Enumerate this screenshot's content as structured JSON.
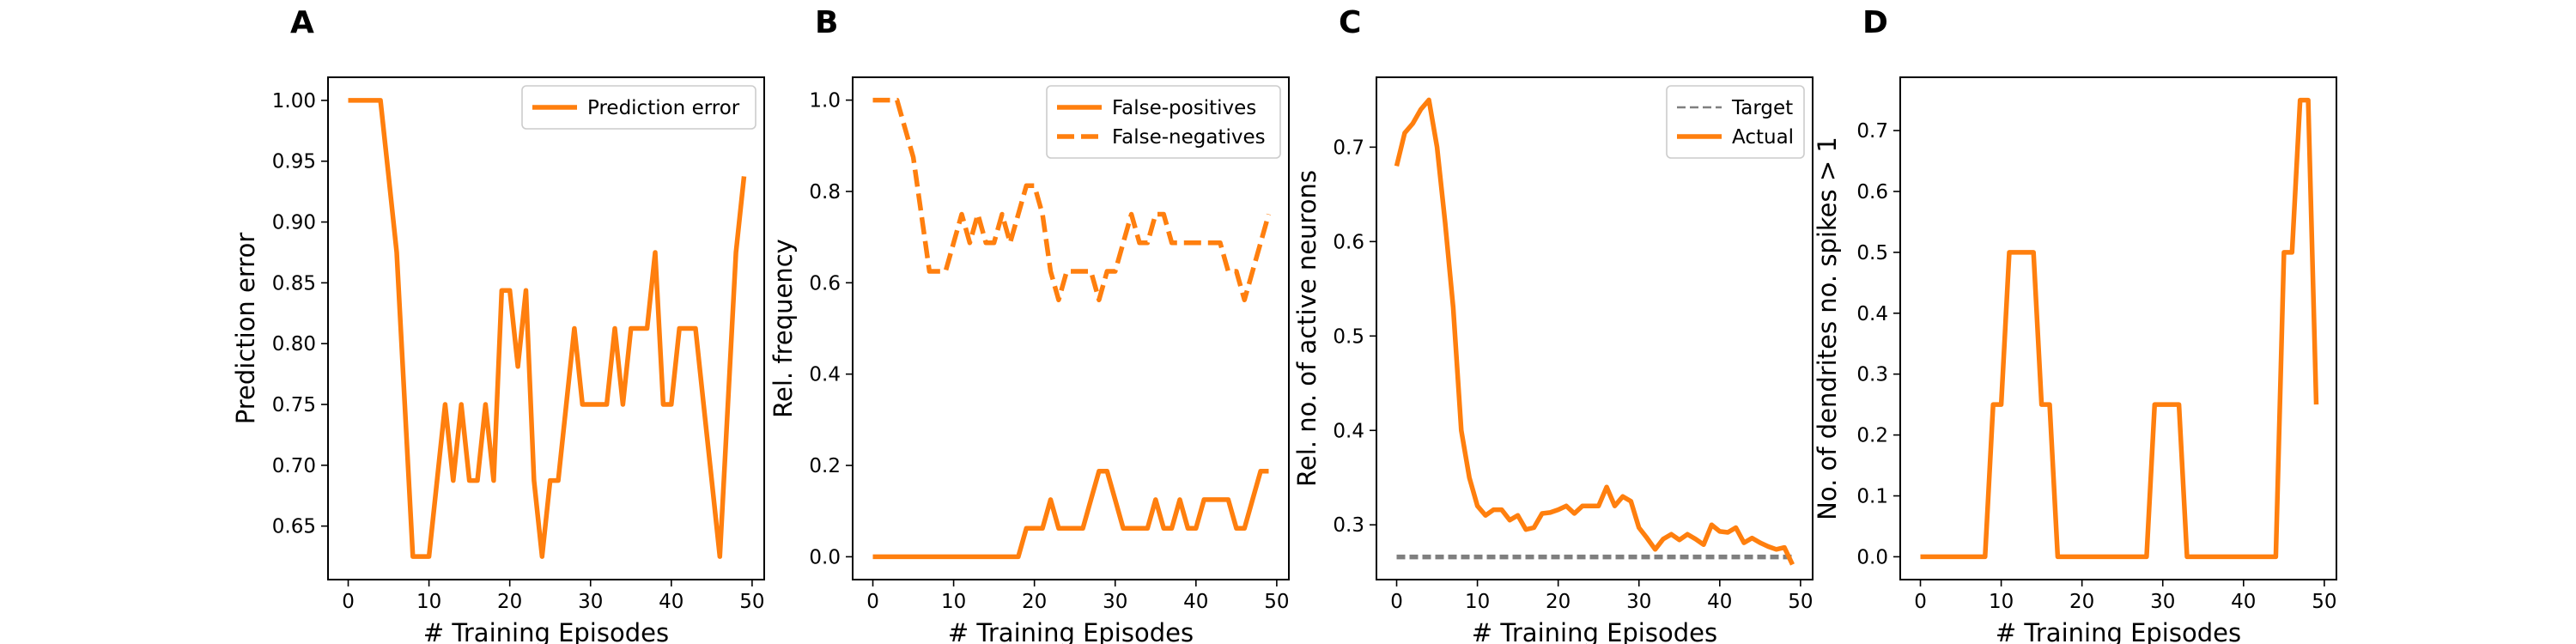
{
  "colors": {
    "orange": "#ff7f0e",
    "target": "#7f7f7f"
  },
  "chart_data": [
    {
      "panel": "A",
      "type": "line",
      "xlabel": "# Training Episodes",
      "ylabel": "Prediction error",
      "xlim": [
        -2.5,
        51.5
      ],
      "ylim": [
        0.606,
        1.019
      ],
      "xticks": [
        0,
        10,
        20,
        30,
        40,
        50
      ],
      "yticks": [
        0.65,
        0.7,
        0.75,
        0.8,
        0.85,
        0.9,
        0.95,
        1.0
      ],
      "ytick_labels": [
        "0.65",
        "0.70",
        "0.75",
        "0.80",
        "0.85",
        "0.90",
        "0.95",
        "1.00"
      ],
      "legend": "upper right",
      "series": [
        {
          "name": "Prediction error",
          "style": "solid",
          "x": [
            0,
            1,
            2,
            3,
            4,
            5,
            6,
            7,
            8,
            9,
            10,
            11,
            12,
            13,
            14,
            15,
            16,
            17,
            18,
            19,
            20,
            21,
            22,
            23,
            24,
            25,
            26,
            27,
            28,
            29,
            30,
            31,
            32,
            33,
            34,
            35,
            36,
            37,
            38,
            39,
            40,
            41,
            42,
            43,
            44,
            45,
            46,
            47,
            48,
            49
          ],
          "y": [
            1.0,
            1.0,
            1.0,
            1.0,
            1.0,
            0.9375,
            0.875,
            0.75,
            0.625,
            0.625,
            0.625,
            0.6875,
            0.75,
            0.6875,
            0.75,
            0.6875,
            0.6875,
            0.75,
            0.6875,
            0.84375,
            0.84375,
            0.78125,
            0.84375,
            0.6875,
            0.625,
            0.6875,
            0.6875,
            0.75,
            0.8125,
            0.75,
            0.75,
            0.75,
            0.75,
            0.8125,
            0.75,
            0.8125,
            0.8125,
            0.8125,
            0.875,
            0.75,
            0.75,
            0.8125,
            0.8125,
            0.8125,
            0.75,
            0.6875,
            0.625,
            0.75,
            0.875,
            0.9375
          ]
        }
      ]
    },
    {
      "panel": "B",
      "type": "line",
      "xlabel": "# Training Episodes",
      "ylabel": "Rel. frequency",
      "xlim": [
        -2.5,
        51.5
      ],
      "ylim": [
        -0.05,
        1.05
      ],
      "xticks": [
        0,
        10,
        20,
        30,
        40,
        50
      ],
      "yticks": [
        0.0,
        0.2,
        0.4,
        0.6,
        0.8,
        1.0
      ],
      "ytick_labels": [
        "0.0",
        "0.2",
        "0.4",
        "0.6",
        "0.8",
        "1.0"
      ],
      "legend": "upper right",
      "series": [
        {
          "name": "False-positives",
          "style": "solid",
          "x": [
            0,
            1,
            2,
            3,
            4,
            5,
            6,
            7,
            8,
            9,
            10,
            11,
            12,
            13,
            14,
            15,
            16,
            17,
            18,
            19,
            20,
            21,
            22,
            23,
            24,
            25,
            26,
            27,
            28,
            29,
            30,
            31,
            32,
            33,
            34,
            35,
            36,
            37,
            38,
            39,
            40,
            41,
            42,
            43,
            44,
            45,
            46,
            47,
            48,
            49
          ],
          "y": [
            0,
            0,
            0,
            0,
            0,
            0,
            0,
            0,
            0,
            0,
            0,
            0,
            0,
            0,
            0,
            0,
            0,
            0,
            0,
            0.0625,
            0.0625,
            0.0625,
            0.125,
            0.0625,
            0.0625,
            0.0625,
            0.0625,
            0.125,
            0.1875,
            0.1875,
            0.125,
            0.0625,
            0.0625,
            0.0625,
            0.0625,
            0.125,
            0.0625,
            0.0625,
            0.125,
            0.0625,
            0.0625,
            0.125,
            0.125,
            0.125,
            0.125,
            0.0625,
            0.0625,
            0.125,
            0.1875,
            0.1875
          ]
        },
        {
          "name": "False-negatives",
          "style": "dashed",
          "x": [
            0,
            1,
            2,
            3,
            4,
            5,
            6,
            7,
            8,
            9,
            10,
            11,
            12,
            13,
            14,
            15,
            16,
            17,
            18,
            19,
            20,
            21,
            22,
            23,
            24,
            25,
            26,
            27,
            28,
            29,
            30,
            31,
            32,
            33,
            34,
            35,
            36,
            37,
            38,
            39,
            40,
            41,
            42,
            43,
            44,
            45,
            46,
            47,
            48,
            49
          ],
          "y": [
            1.0,
            1.0,
            1.0,
            1.0,
            0.9375,
            0.875,
            0.75,
            0.625,
            0.625,
            0.625,
            0.6875,
            0.75,
            0.6875,
            0.75,
            0.6875,
            0.6875,
            0.75,
            0.6875,
            0.75,
            0.8125,
            0.8125,
            0.75,
            0.625,
            0.5625,
            0.625,
            0.625,
            0.625,
            0.625,
            0.5625,
            0.625,
            0.625,
            0.6875,
            0.75,
            0.6875,
            0.6875,
            0.75,
            0.75,
            0.6875,
            0.6875,
            0.6875,
            0.6875,
            0.6875,
            0.6875,
            0.6875,
            0.625,
            0.625,
            0.5625,
            0.625,
            0.6875,
            0.75
          ]
        }
      ]
    },
    {
      "panel": "C",
      "type": "line",
      "xlabel": "# Training Episodes",
      "ylabel": "Rel. no. of active neurons",
      "xlim": [
        -2.5,
        51.5
      ],
      "ylim": [
        0.242,
        0.774
      ],
      "xticks": [
        0,
        10,
        20,
        30,
        40,
        50
      ],
      "yticks": [
        0.3,
        0.4,
        0.5,
        0.6,
        0.7
      ],
      "ytick_labels": [
        "0.3",
        "0.4",
        "0.5",
        "0.6",
        "0.7"
      ],
      "legend": "upper right",
      "series": [
        {
          "name": "Target",
          "style": "dashed-thin",
          "x": [
            0,
            49
          ],
          "y": [
            0.266,
            0.266
          ]
        },
        {
          "name": "Actual",
          "style": "solid",
          "x": [
            0,
            1,
            2,
            3,
            4,
            5,
            6,
            7,
            8,
            9,
            10,
            11,
            12,
            13,
            14,
            15,
            16,
            17,
            18,
            19,
            20,
            21,
            22,
            23,
            24,
            25,
            26,
            27,
            28,
            29,
            30,
            31,
            32,
            33,
            34,
            35,
            36,
            37,
            38,
            39,
            40,
            41,
            42,
            43,
            44,
            45,
            46,
            47,
            48,
            49
          ],
          "y": [
            0.68,
            0.715,
            0.725,
            0.74,
            0.75,
            0.7,
            0.62,
            0.53,
            0.4,
            0.35,
            0.32,
            0.31,
            0.316,
            0.316,
            0.305,
            0.31,
            0.295,
            0.297,
            0.312,
            0.313,
            0.316,
            0.32,
            0.312,
            0.32,
            0.32,
            0.32,
            0.34,
            0.32,
            0.33,
            0.325,
            0.297,
            0.286,
            0.274,
            0.285,
            0.29,
            0.284,
            0.29,
            0.285,
            0.279,
            0.3,
            0.293,
            0.292,
            0.297,
            0.281,
            0.286,
            0.281,
            0.277,
            0.274,
            0.276,
            0.258
          ]
        }
      ]
    },
    {
      "panel": "D",
      "type": "line",
      "xlabel": "# Training Episodes",
      "ylabel": "No. of dendrites no. spikes > 1",
      "xlim": [
        -2.5,
        51.5
      ],
      "ylim": [
        -0.0375,
        0.7875
      ],
      "xticks": [
        0,
        10,
        20,
        30,
        40,
        50
      ],
      "yticks": [
        0.0,
        0.1,
        0.2,
        0.3,
        0.4,
        0.5,
        0.6,
        0.7
      ],
      "ytick_labels": [
        "0.0",
        "0.1",
        "0.2",
        "0.3",
        "0.4",
        "0.5",
        "0.6",
        "0.7"
      ],
      "legend": "none",
      "series": [
        {
          "name": "",
          "style": "solid",
          "x": [
            0,
            1,
            2,
            3,
            4,
            5,
            6,
            7,
            8,
            9,
            10,
            11,
            12,
            13,
            14,
            15,
            16,
            17,
            18,
            19,
            20,
            21,
            22,
            23,
            24,
            25,
            26,
            27,
            28,
            29,
            30,
            31,
            32,
            33,
            34,
            35,
            36,
            37,
            38,
            39,
            40,
            41,
            42,
            43,
            44,
            45,
            46,
            47,
            48,
            49
          ],
          "y": [
            0,
            0,
            0,
            0,
            0,
            0,
            0,
            0,
            0,
            0.25,
            0.25,
            0.5,
            0.5,
            0.5,
            0.5,
            0.25,
            0.25,
            0,
            0,
            0,
            0,
            0,
            0,
            0,
            0,
            0,
            0,
            0,
            0,
            0.25,
            0.25,
            0.25,
            0.25,
            0,
            0,
            0,
            0,
            0,
            0,
            0,
            0,
            0,
            0,
            0,
            0,
            0.5,
            0.5,
            0.75,
            0.75,
            0.25
          ]
        }
      ]
    }
  ]
}
